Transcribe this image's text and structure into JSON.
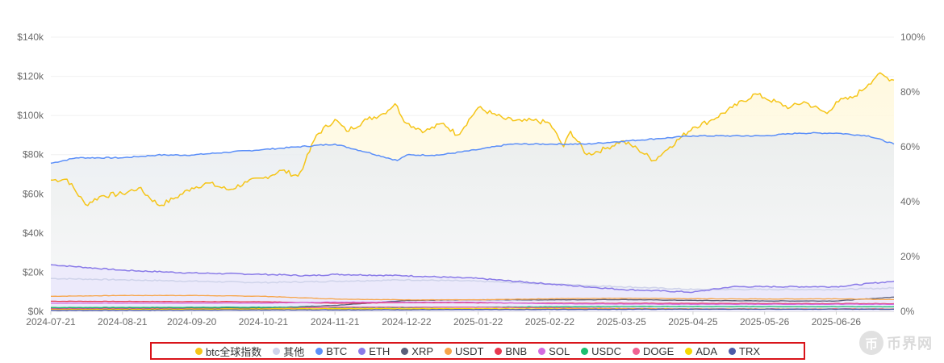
{
  "chart_data": {
    "type": "line",
    "title": "",
    "xlabel": "",
    "ylabel": "",
    "x_ticks": [
      "2024-07-21",
      "2024-08-21",
      "2024-09-20",
      "2024-10-21",
      "2024-11-21",
      "2024-12-22",
      "2025-01-22",
      "2025-02-22",
      "2025-03-25",
      "2025-04-25",
      "2025-05-26",
      "2025-06-26"
    ],
    "x_range": [
      "2024-07-21",
      "2025-07-21"
    ],
    "y_left": {
      "ticks": [
        "$0k",
        "$20k",
        "$40k",
        "$60k",
        "$80k",
        "$100k",
        "$120k",
        "$140k"
      ],
      "ylim": [
        0,
        140000
      ]
    },
    "y_right": {
      "ticks": [
        "0%",
        "20%",
        "40%",
        "60%",
        "80%",
        "100%"
      ],
      "ylim": [
        0,
        100
      ]
    },
    "grid": true,
    "legend_position": "bottom",
    "series": [
      {
        "name": "btc全球指数",
        "axis": "left",
        "color": "#f5c518",
        "fill": true,
        "points": [
          [
            "2024-07-21",
            67000
          ],
          [
            "2024-07-28",
            67500
          ],
          [
            "2024-08-05",
            54500
          ],
          [
            "2024-08-12",
            59000
          ],
          [
            "2024-08-21",
            60000
          ],
          [
            "2024-08-28",
            63000
          ],
          [
            "2024-09-06",
            54000
          ],
          [
            "2024-09-13",
            58000
          ],
          [
            "2024-09-20",
            63000
          ],
          [
            "2024-09-27",
            65500
          ],
          [
            "2024-10-06",
            62000
          ],
          [
            "2024-10-14",
            66000
          ],
          [
            "2024-10-21",
            68000
          ],
          [
            "2024-10-29",
            72000
          ],
          [
            "2024-11-05",
            69000
          ],
          [
            "2024-11-08",
            76000
          ],
          [
            "2024-11-13",
            90000
          ],
          [
            "2024-11-21",
            98000
          ],
          [
            "2024-11-26",
            92000
          ],
          [
            "2024-12-05",
            98000
          ],
          [
            "2024-12-12",
            101000
          ],
          [
            "2024-12-17",
            106000
          ],
          [
            "2024-12-22",
            96000
          ],
          [
            "2024-12-30",
            92000
          ],
          [
            "2025-01-07",
            96000
          ],
          [
            "2025-01-13",
            90000
          ],
          [
            "2025-01-22",
            104000
          ],
          [
            "2025-01-28",
            101000
          ],
          [
            "2025-02-03",
            98000
          ],
          [
            "2025-02-10",
            97000
          ],
          [
            "2025-02-15",
            97500
          ],
          [
            "2025-02-22",
            96000
          ],
          [
            "2025-02-28",
            84000
          ],
          [
            "2025-03-03",
            92000
          ],
          [
            "2025-03-10",
            80000
          ],
          [
            "2025-03-18",
            83000
          ],
          [
            "2025-03-25",
            87000
          ],
          [
            "2025-04-01",
            83000
          ],
          [
            "2025-04-08",
            77000
          ],
          [
            "2025-04-15",
            84000
          ],
          [
            "2025-04-25",
            94000
          ],
          [
            "2025-05-02",
            97000
          ],
          [
            "2025-05-12",
            104000
          ],
          [
            "2025-05-22",
            111000
          ],
          [
            "2025-05-26",
            109000
          ],
          [
            "2025-06-06",
            104000
          ],
          [
            "2025-06-12",
            107000
          ],
          [
            "2025-06-22",
            101000
          ],
          [
            "2025-06-26",
            107000
          ],
          [
            "2025-07-03",
            109000
          ],
          [
            "2025-07-10",
            116000
          ],
          [
            "2025-07-14",
            121000
          ],
          [
            "2025-07-21",
            118000
          ]
        ]
      },
      {
        "name": "BTC",
        "axis": "right",
        "color": "#5b8ff9",
        "fill": true,
        "points": [
          [
            "2024-07-21",
            54
          ],
          [
            "2024-08-01",
            56
          ],
          [
            "2024-08-21",
            56
          ],
          [
            "2024-09-05",
            57
          ],
          [
            "2024-09-20",
            57
          ],
          [
            "2024-10-05",
            58
          ],
          [
            "2024-10-21",
            59
          ],
          [
            "2024-11-05",
            60
          ],
          [
            "2024-11-21",
            61
          ],
          [
            "2024-12-05",
            58
          ],
          [
            "2024-12-18",
            55
          ],
          [
            "2024-12-22",
            57
          ],
          [
            "2025-01-05",
            57
          ],
          [
            "2025-01-22",
            59
          ],
          [
            "2025-02-05",
            61
          ],
          [
            "2025-02-22",
            61
          ],
          [
            "2025-03-10",
            61
          ],
          [
            "2025-03-25",
            62
          ],
          [
            "2025-04-10",
            63
          ],
          [
            "2025-04-25",
            64
          ],
          [
            "2025-05-12",
            64
          ],
          [
            "2025-05-26",
            64
          ],
          [
            "2025-06-10",
            65
          ],
          [
            "2025-06-26",
            65
          ],
          [
            "2025-07-10",
            64
          ],
          [
            "2025-07-21",
            61
          ]
        ]
      },
      {
        "name": "其他",
        "axis": "right",
        "color": "#cfd3ea",
        "fill": true,
        "points": [
          [
            "2024-07-21",
            12
          ],
          [
            "2024-08-21",
            11.5
          ],
          [
            "2024-09-20",
            11
          ],
          [
            "2024-10-21",
            10.5
          ],
          [
            "2024-11-21",
            11
          ],
          [
            "2024-12-22",
            11.5
          ],
          [
            "2025-01-22",
            11
          ],
          [
            "2025-02-22",
            10
          ],
          [
            "2025-03-25",
            9
          ],
          [
            "2025-04-25",
            8
          ],
          [
            "2025-05-26",
            8
          ],
          [
            "2025-06-26",
            8
          ],
          [
            "2025-07-21",
            8.5
          ]
        ]
      },
      {
        "name": "ETH",
        "axis": "right",
        "color": "#8a7be8",
        "fill": true,
        "points": [
          [
            "2024-07-21",
            17
          ],
          [
            "2024-08-21",
            15
          ],
          [
            "2024-09-20",
            14
          ],
          [
            "2024-10-21",
            13.5
          ],
          [
            "2024-11-10",
            13
          ],
          [
            "2024-11-21",
            13.5
          ],
          [
            "2024-12-22",
            13
          ],
          [
            "2025-01-22",
            12
          ],
          [
            "2025-02-22",
            10
          ],
          [
            "2025-03-25",
            8
          ],
          [
            "2025-04-25",
            7
          ],
          [
            "2025-05-12",
            9
          ],
          [
            "2025-05-26",
            9
          ],
          [
            "2025-06-26",
            9
          ],
          [
            "2025-07-21",
            11
          ]
        ]
      },
      {
        "name": "XRP",
        "axis": "right",
        "color": "#5a5f7a",
        "fill": false,
        "points": [
          [
            "2024-07-21",
            1.2
          ],
          [
            "2024-10-21",
            1.2
          ],
          [
            "2024-11-21",
            2.2
          ],
          [
            "2024-12-22",
            4.0
          ],
          [
            "2025-01-22",
            4.2
          ],
          [
            "2025-02-22",
            4.2
          ],
          [
            "2025-03-25",
            4.3
          ],
          [
            "2025-04-25",
            4.0
          ],
          [
            "2025-05-26",
            3.8
          ],
          [
            "2025-06-26",
            3.8
          ],
          [
            "2025-07-21",
            5.2
          ]
        ]
      },
      {
        "name": "USDT",
        "axis": "right",
        "color": "#f7a54a",
        "fill": false,
        "points": [
          [
            "2024-07-21",
            5.5
          ],
          [
            "2024-08-21",
            5.8
          ],
          [
            "2024-09-20",
            5.8
          ],
          [
            "2024-10-21",
            5.5
          ],
          [
            "2024-11-21",
            4.5
          ],
          [
            "2024-12-22",
            4.2
          ],
          [
            "2025-01-22",
            4.2
          ],
          [
            "2025-02-22",
            4.6
          ],
          [
            "2025-03-25",
            4.8
          ],
          [
            "2025-04-25",
            4.6
          ],
          [
            "2025-05-26",
            4.5
          ],
          [
            "2025-06-26",
            4.6
          ],
          [
            "2025-07-21",
            4.3
          ]
        ]
      },
      {
        "name": "BNB",
        "axis": "right",
        "color": "#e8384f",
        "fill": false,
        "points": [
          [
            "2024-07-21",
            3.7
          ],
          [
            "2024-10-21",
            3.5
          ],
          [
            "2024-11-21",
            3.0
          ],
          [
            "2024-12-22",
            3.2
          ],
          [
            "2025-02-22",
            3.0
          ],
          [
            "2025-04-25",
            2.9
          ],
          [
            "2025-07-21",
            2.8
          ]
        ]
      },
      {
        "name": "SOL",
        "axis": "right",
        "color": "#d36be0",
        "fill": false,
        "points": [
          [
            "2024-07-21",
            3.0
          ],
          [
            "2024-10-21",
            3.0
          ],
          [
            "2024-11-21",
            3.4
          ],
          [
            "2025-01-22",
            3.3
          ],
          [
            "2025-02-22",
            2.8
          ],
          [
            "2025-04-25",
            2.6
          ],
          [
            "2025-07-21",
            2.6
          ]
        ]
      },
      {
        "name": "USDC",
        "axis": "right",
        "color": "#1bbf6f",
        "fill": false,
        "points": [
          [
            "2024-07-21",
            1.4
          ],
          [
            "2024-10-21",
            1.5
          ],
          [
            "2024-12-22",
            1.4
          ],
          [
            "2025-03-25",
            1.8
          ],
          [
            "2025-07-21",
            1.7
          ]
        ]
      },
      {
        "name": "DOGE",
        "axis": "right",
        "color": "#f06292",
        "fill": false,
        "points": [
          [
            "2024-07-21",
            0.9
          ],
          [
            "2024-10-21",
            0.9
          ],
          [
            "2024-11-21",
            1.6
          ],
          [
            "2025-01-22",
            1.5
          ],
          [
            "2025-04-25",
            0.9
          ],
          [
            "2025-07-21",
            0.9
          ]
        ]
      },
      {
        "name": "ADA",
        "axis": "right",
        "color": "#f5d800",
        "fill": false,
        "points": [
          [
            "2024-07-21",
            0.6
          ],
          [
            "2024-11-21",
            1.0
          ],
          [
            "2025-02-22",
            0.9
          ],
          [
            "2025-07-21",
            0.8
          ]
        ]
      },
      {
        "name": "TRX",
        "axis": "right",
        "color": "#4c5ba8",
        "fill": false,
        "points": [
          [
            "2024-07-21",
            0.4
          ],
          [
            "2024-12-22",
            0.6
          ],
          [
            "2025-04-25",
            0.8
          ],
          [
            "2025-07-21",
            0.8
          ]
        ]
      }
    ],
    "legend": [
      {
        "name": "btc全球指数",
        "color": "#f5c518"
      },
      {
        "name": "其他",
        "color": "#cfd3ea"
      },
      {
        "name": "BTC",
        "color": "#5b8ff9"
      },
      {
        "name": "ETH",
        "color": "#8a7be8"
      },
      {
        "name": "XRP",
        "color": "#5a5f7a"
      },
      {
        "name": "USDT",
        "color": "#f7a54a"
      },
      {
        "name": "BNB",
        "color": "#e8384f"
      },
      {
        "name": "SOL",
        "color": "#d36be0"
      },
      {
        "name": "USDC",
        "color": "#1bbf6f"
      },
      {
        "name": "DOGE",
        "color": "#f06292"
      },
      {
        "name": "ADA",
        "color": "#f5d800"
      },
      {
        "name": "TRX",
        "color": "#4c5ba8"
      }
    ]
  },
  "watermark": {
    "logo": "币",
    "text": "币界网"
  }
}
